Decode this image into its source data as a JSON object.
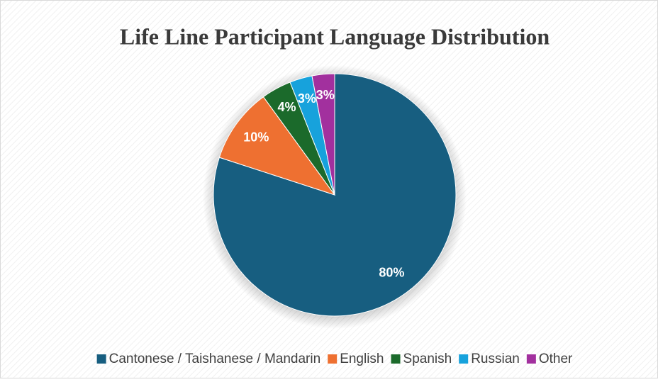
{
  "chart_data": {
    "type": "pie",
    "title": "Life Line Participant Language Distribution",
    "categories": [
      "Cantonese / Taishanese / Mandarin",
      "English",
      "Spanish",
      "Russian",
      "Other"
    ],
    "values": [
      80,
      10,
      4,
      3,
      3
    ],
    "value_labels": [
      "80%",
      "10%",
      "4%",
      "3%",
      "3%"
    ],
    "colors": [
      "#175e80",
      "#ee7031",
      "#1b6a2b",
      "#17a2dc",
      "#a2309e"
    ],
    "legend": "bottom"
  }
}
